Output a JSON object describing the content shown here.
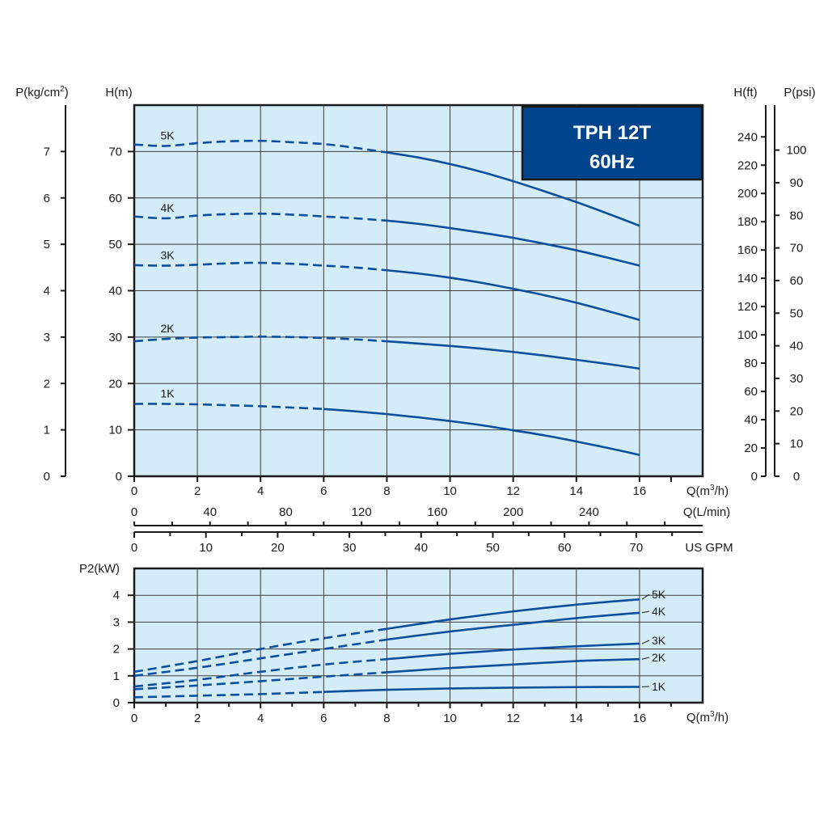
{
  "colors": {
    "plot_bg": "#d3ecf8",
    "grid": "#3a3a3a",
    "curve": "#0b4f9c",
    "badge_bg": "#00458c",
    "badge_text": "#ffffff",
    "axis": "#1a1a1a"
  },
  "badge": {
    "line1": "TPH 12T",
    "line2": "60Hz"
  },
  "chart_data": [
    {
      "type": "line",
      "id": "head-curve",
      "x_axis": {
        "label": "Q(m3/h)",
        "label_main": "Q(m",
        "label_sup": "3",
        "label_end": "/h)",
        "range": [
          0,
          18
        ],
        "ticks": [
          0,
          2,
          4,
          6,
          8,
          10,
          12,
          14,
          16
        ],
        "grid_step": 2
      },
      "y_axis": {
        "label": "H(m)",
        "range": [
          0,
          80
        ],
        "ticks": [
          0,
          10,
          20,
          30,
          40,
          50,
          60,
          70
        ],
        "grid_step": 10
      },
      "secondary_axes": {
        "p_kgcm2": {
          "label_main": "P(kg/cm",
          "label_sup": "2",
          "label_end": ")",
          "ticks": [
            0,
            1,
            2,
            3,
            4,
            5,
            6,
            7
          ],
          "units_per_tick_m": 10
        },
        "h_ft": {
          "label": "H(ft)",
          "ticks": [
            0,
            20,
            40,
            60,
            80,
            100,
            120,
            140,
            160,
            180,
            200,
            220,
            240
          ],
          "m_per_unit": 0.3048
        },
        "p_psi": {
          "label": "P(psi)",
          "ticks": [
            0,
            10,
            20,
            30,
            40,
            50,
            60,
            70,
            80,
            90,
            100
          ],
          "m_per_unit": 0.7031
        },
        "q_lmin": {
          "label": "Q(L/min)",
          "ticks": [
            0,
            40,
            80,
            120,
            160,
            200,
            240
          ],
          "m3h_per_unit": 0.06
        },
        "us_gpm": {
          "label": "US GPM",
          "ticks": [
            0,
            10,
            20,
            30,
            40,
            50,
            60,
            70
          ],
          "m3h_per_unit": 0.2271
        }
      },
      "grid": true,
      "series": [
        {
          "name": "1K",
          "dashed_until_x": 6,
          "x": [
            0,
            1,
            2,
            3,
            4,
            5,
            6,
            7,
            8,
            9,
            10,
            11,
            12,
            13,
            14,
            15,
            16
          ],
          "y": [
            15.6,
            15.6,
            15.5,
            15.3,
            15.1,
            14.8,
            14.5,
            14.0,
            13.4,
            12.7,
            11.9,
            11.0,
            9.9,
            8.8,
            7.5,
            6.1,
            4.6
          ]
        },
        {
          "name": "2K",
          "dashed_until_x": 8,
          "x": [
            0,
            1,
            2,
            3,
            4,
            5,
            6,
            7,
            8,
            9,
            10,
            11,
            12,
            13,
            14,
            15,
            16
          ],
          "y": [
            29.1,
            29.6,
            29.9,
            30.0,
            30.1,
            30.0,
            29.8,
            29.5,
            29.1,
            28.6,
            28.1,
            27.5,
            26.8,
            26.0,
            25.1,
            24.2,
            23.2
          ]
        },
        {
          "name": "3K",
          "dashed_until_x": 8,
          "x": [
            0,
            1,
            2,
            3,
            4,
            5,
            6,
            7,
            8,
            9,
            10,
            11,
            12,
            13,
            14,
            15,
            16
          ],
          "y": [
            45.5,
            45.4,
            45.6,
            45.9,
            46.0,
            45.8,
            45.4,
            45.0,
            44.4,
            43.7,
            42.8,
            41.7,
            40.4,
            39.0,
            37.4,
            35.6,
            33.7
          ]
        },
        {
          "name": "4K",
          "dashed_until_x": 8,
          "x": [
            0,
            1,
            2,
            3,
            4,
            5,
            6,
            7,
            8,
            9,
            10,
            11,
            12,
            13,
            14,
            15,
            16
          ],
          "y": [
            56.0,
            55.6,
            56.2,
            56.5,
            56.6,
            56.4,
            56.0,
            55.6,
            55.1,
            54.4,
            53.5,
            52.5,
            51.4,
            50.1,
            48.7,
            47.1,
            45.4
          ]
        },
        {
          "name": "5K",
          "dashed_until_x": 8,
          "x": [
            0,
            1,
            2,
            3,
            4,
            5,
            6,
            7,
            8,
            9,
            10,
            11,
            12,
            13,
            14,
            15,
            16
          ],
          "y": [
            71.5,
            71.2,
            71.8,
            72.2,
            72.3,
            72.0,
            71.6,
            70.8,
            69.8,
            68.7,
            67.3,
            65.6,
            63.6,
            61.4,
            59.1,
            56.6,
            54.0
          ]
        }
      ],
      "legend": "labels on curves near left edge"
    },
    {
      "type": "line",
      "id": "power-curve",
      "x_axis": {
        "label": "Q(m3/h)",
        "label_main": "Q(m",
        "label_sup": "3",
        "label_end": "/h)",
        "range": [
          0,
          18
        ],
        "ticks": [
          0,
          2,
          4,
          6,
          8,
          10,
          12,
          14,
          16
        ],
        "grid_step": 2
      },
      "y_axis": {
        "label": "P2(kW)",
        "range": [
          0,
          5
        ],
        "ticks": [
          0,
          1,
          2,
          3,
          4
        ],
        "grid_step": 1
      },
      "grid": true,
      "series": [
        {
          "name": "1K",
          "dashed_until_x": 6,
          "x": [
            0,
            2,
            4,
            6,
            8,
            10,
            12,
            14,
            16
          ],
          "y": [
            0.2,
            0.26,
            0.32,
            0.4,
            0.48,
            0.53,
            0.56,
            0.58,
            0.59
          ]
        },
        {
          "name": "2K",
          "dashed_until_x": 8,
          "x": [
            0,
            2,
            4,
            6,
            8,
            10,
            12,
            14,
            16
          ],
          "y": [
            0.5,
            0.64,
            0.8,
            0.97,
            1.13,
            1.29,
            1.42,
            1.55,
            1.62
          ]
        },
        {
          "name": "3K",
          "dashed_until_x": 8,
          "x": [
            0,
            2,
            4,
            6,
            8,
            10,
            12,
            14,
            16
          ],
          "y": [
            0.6,
            0.85,
            1.15,
            1.42,
            1.62,
            1.82,
            1.98,
            2.1,
            2.2
          ]
        },
        {
          "name": "4K",
          "dashed_until_x": 8,
          "x": [
            0,
            2,
            4,
            6,
            8,
            10,
            12,
            14,
            16
          ],
          "y": [
            1.0,
            1.3,
            1.65,
            2.0,
            2.35,
            2.65,
            2.9,
            3.15,
            3.35
          ]
        },
        {
          "name": "5K",
          "dashed_until_x": 8,
          "x": [
            0,
            2,
            4,
            6,
            8,
            10,
            12,
            14,
            16
          ],
          "y": [
            1.15,
            1.55,
            2.0,
            2.4,
            2.75,
            3.1,
            3.4,
            3.65,
            3.85
          ]
        }
      ],
      "legend": "labels at right end of curves"
    }
  ]
}
